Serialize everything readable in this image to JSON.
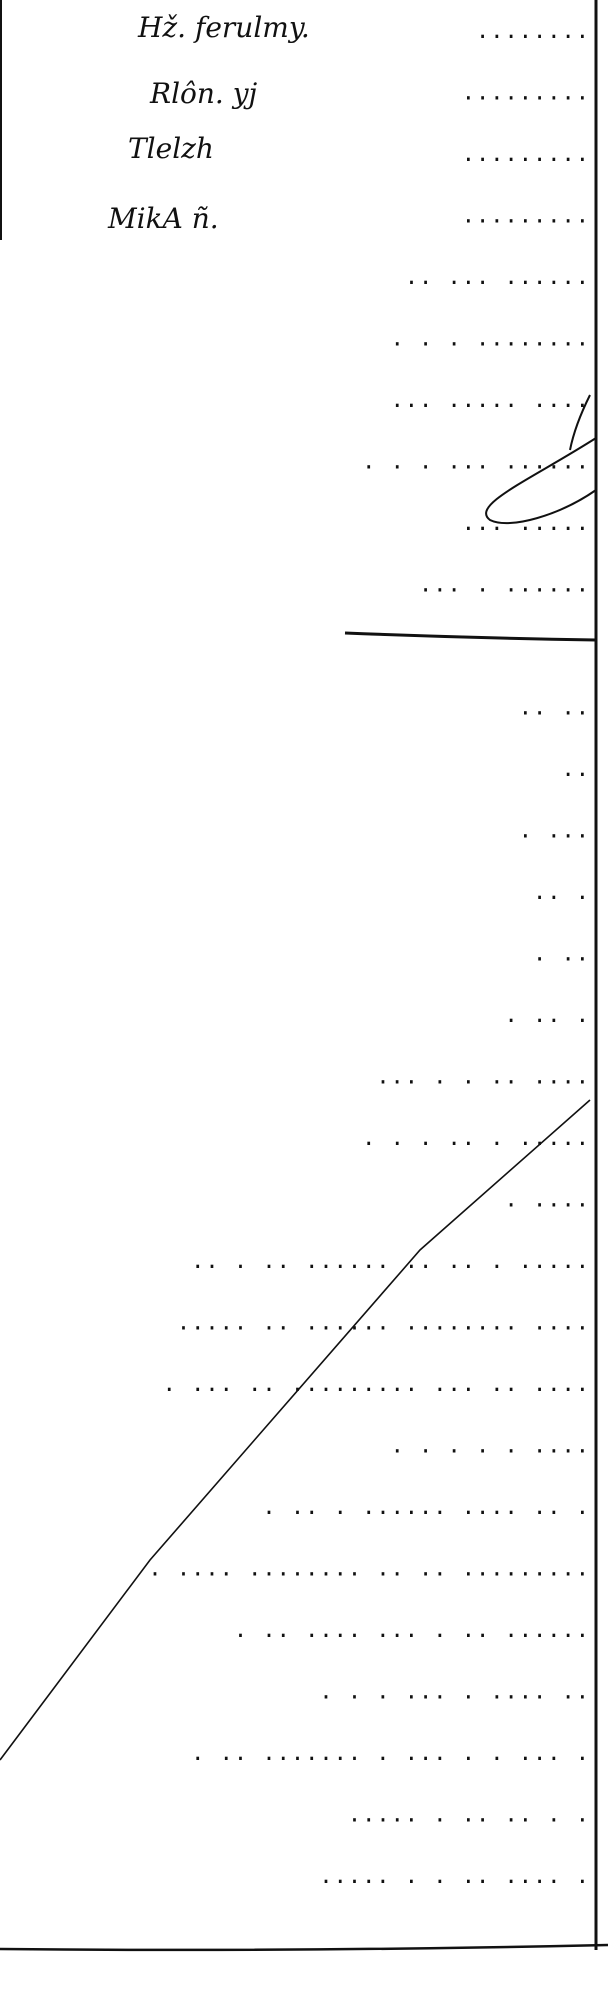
{
  "document": {
    "ink_color": "#111111",
    "handwritten_entries": [
      {
        "text": "Hž. ferulmy."
      },
      {
        "text": "Rlôn. yj"
      },
      {
        "text": "Tlelzh"
      },
      {
        "text": "MikA ñ."
      }
    ],
    "leader_rows": [
      "........",
      ".........",
      ".........",
      ".........",
      "..  ... ......",
      ".  . .  ........",
      "...   ..... ....",
      ".    .    .   ... ......",
      "...        .....",
      "...  . ......",
      "",
      ".. ..",
      "..",
      ".   ...",
      ".. .",
      ". ..",
      ".  ..  .",
      "...  .  .  ..  ....",
      ". .  .  ..   .  .....",
      ".  ....",
      ".. . .. ......  .. ..  . .....",
      "..... .. ......  ........  ....",
      ".   ...  ..  ......... ... .. ....",
      ".  .  .  .   .   ....",
      ". ..  .   ...... .... ..  .",
      ".  ....  ........  .. .. .........",
      ".  .. ....  ...  .  ..  ......",
      ".  .  .  ...  .  ....  ..",
      ". ..  ....... . ...  .  . ... .",
      "..... .  .. ..  . .",
      "..... .  .  .. ....  ."
    ]
  }
}
